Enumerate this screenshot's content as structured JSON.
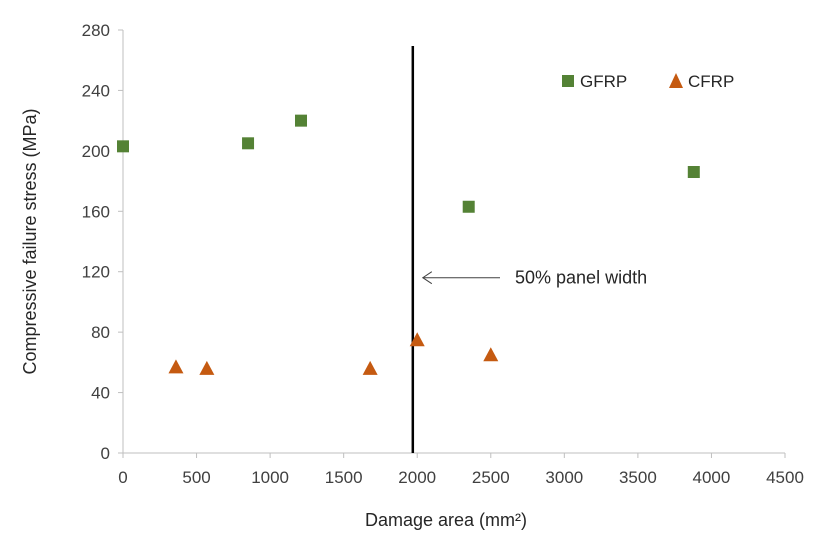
{
  "chart_data": {
    "type": "scatter",
    "xlabel": "Damage area (mm²)",
    "ylabel": "Compressive failure stress (MPa)",
    "xlim": [
      0,
      4500
    ],
    "ylim": [
      0,
      280
    ],
    "xticks": [
      0,
      500,
      1000,
      1500,
      2000,
      2500,
      3000,
      3500,
      4000,
      4500
    ],
    "yticks": [
      0,
      40,
      80,
      120,
      160,
      200,
      240,
      280
    ],
    "grid": false,
    "legend_position": "top-right",
    "series": [
      {
        "name": "GFRP",
        "marker": "square",
        "color": "#548235",
        "points": [
          {
            "x": 0,
            "y": 203
          },
          {
            "x": 850,
            "y": 205
          },
          {
            "x": 1210,
            "y": 220
          },
          {
            "x": 2350,
            "y": 163
          },
          {
            "x": 3880,
            "y": 186
          }
        ]
      },
      {
        "name": "CFRP",
        "marker": "triangle",
        "color": "#C55A11",
        "points": [
          {
            "x": 360,
            "y": 57
          },
          {
            "x": 570,
            "y": 56
          },
          {
            "x": 1680,
            "y": 56
          },
          {
            "x": 2000,
            "y": 75
          },
          {
            "x": 2500,
            "y": 65
          }
        ]
      }
    ],
    "reference_line": {
      "x": 1970,
      "color": "#000000"
    },
    "annotation": {
      "text": "50% panel width",
      "arrow_to_x": 1970,
      "y": 120
    }
  }
}
